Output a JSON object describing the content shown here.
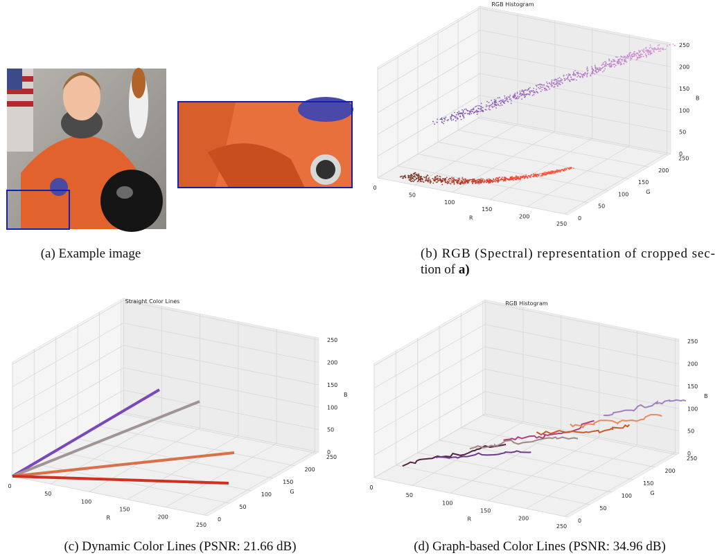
{
  "panels": [
    {
      "caption": "(a) Example image"
    },
    {
      "title": "RGB Histogram",
      "caption_lines": [
        "(b) RGB (Spectral) representation of cropped sec-",
        "tion of"
      ],
      "caption_bold": "a)",
      "axis_labels": {
        "r": "R",
        "g": "G",
        "b": "B"
      },
      "r_ticks": [
        0,
        50,
        100,
        150,
        200,
        250
      ],
      "g_ticks": [
        0,
        50,
        100,
        150,
        200,
        250
      ],
      "b_ticks": [
        0,
        50,
        100,
        150,
        200,
        250
      ]
    },
    {
      "title": "Straight Color Lines",
      "caption": "(c) Dynamic Color Lines (PSNR: 21.66 dB)",
      "axis_labels": {
        "r": "R",
        "g": "G",
        "b": "B"
      },
      "r_ticks": [
        0,
        50,
        100,
        150,
        200,
        250
      ],
      "g_ticks": [
        0,
        50,
        100,
        150,
        200,
        250
      ],
      "b_ticks": [
        0,
        50,
        100,
        150,
        200,
        250
      ]
    },
    {
      "title": "RGB Histogram",
      "caption": "(d) Graph-based Color Lines (PSNR: 34.96 dB)",
      "axis_labels": {
        "r": "R",
        "g": "G",
        "b": "B"
      },
      "r_ticks": [
        0,
        50,
        100,
        150,
        200,
        250
      ],
      "g_ticks": [
        0,
        50,
        100,
        150,
        200,
        250
      ],
      "b_ticks": [
        0,
        50,
        100,
        150,
        200,
        250
      ]
    }
  ]
}
